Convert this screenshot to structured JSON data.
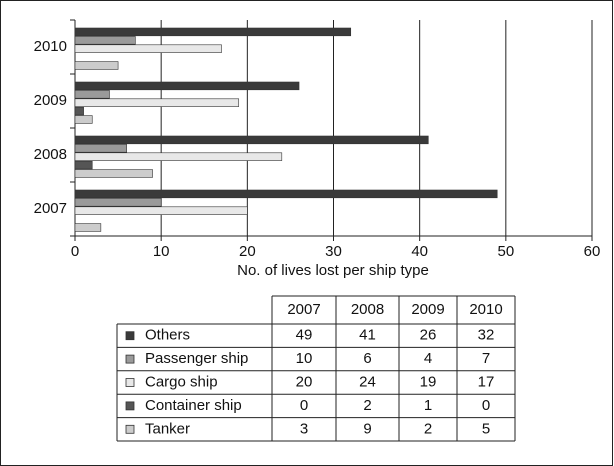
{
  "chart_data": {
    "type": "hbar",
    "x_label": "No. of lives lost per ship type",
    "categories": [
      "2007",
      "2008",
      "2009",
      "2010"
    ],
    "series": [
      {
        "name": "Others",
        "color": "#3a3a3a",
        "values": [
          49,
          41,
          26,
          32
        ]
      },
      {
        "name": "Passenger ship",
        "color": "#9a9a9a",
        "values": [
          10,
          6,
          4,
          7
        ]
      },
      {
        "name": "Cargo ship",
        "color": "#e8e8e8",
        "values": [
          20,
          24,
          19,
          17
        ]
      },
      {
        "name": "Container ship",
        "color": "#555555",
        "values": [
          0,
          2,
          1,
          0
        ]
      },
      {
        "name": "Tanker",
        "color": "#cccccc",
        "values": [
          3,
          9,
          2,
          5
        ]
      }
    ],
    "xlim": [
      0,
      60
    ],
    "xticks": [
      0,
      10,
      20,
      30,
      40,
      50,
      60
    ],
    "grid": true
  }
}
